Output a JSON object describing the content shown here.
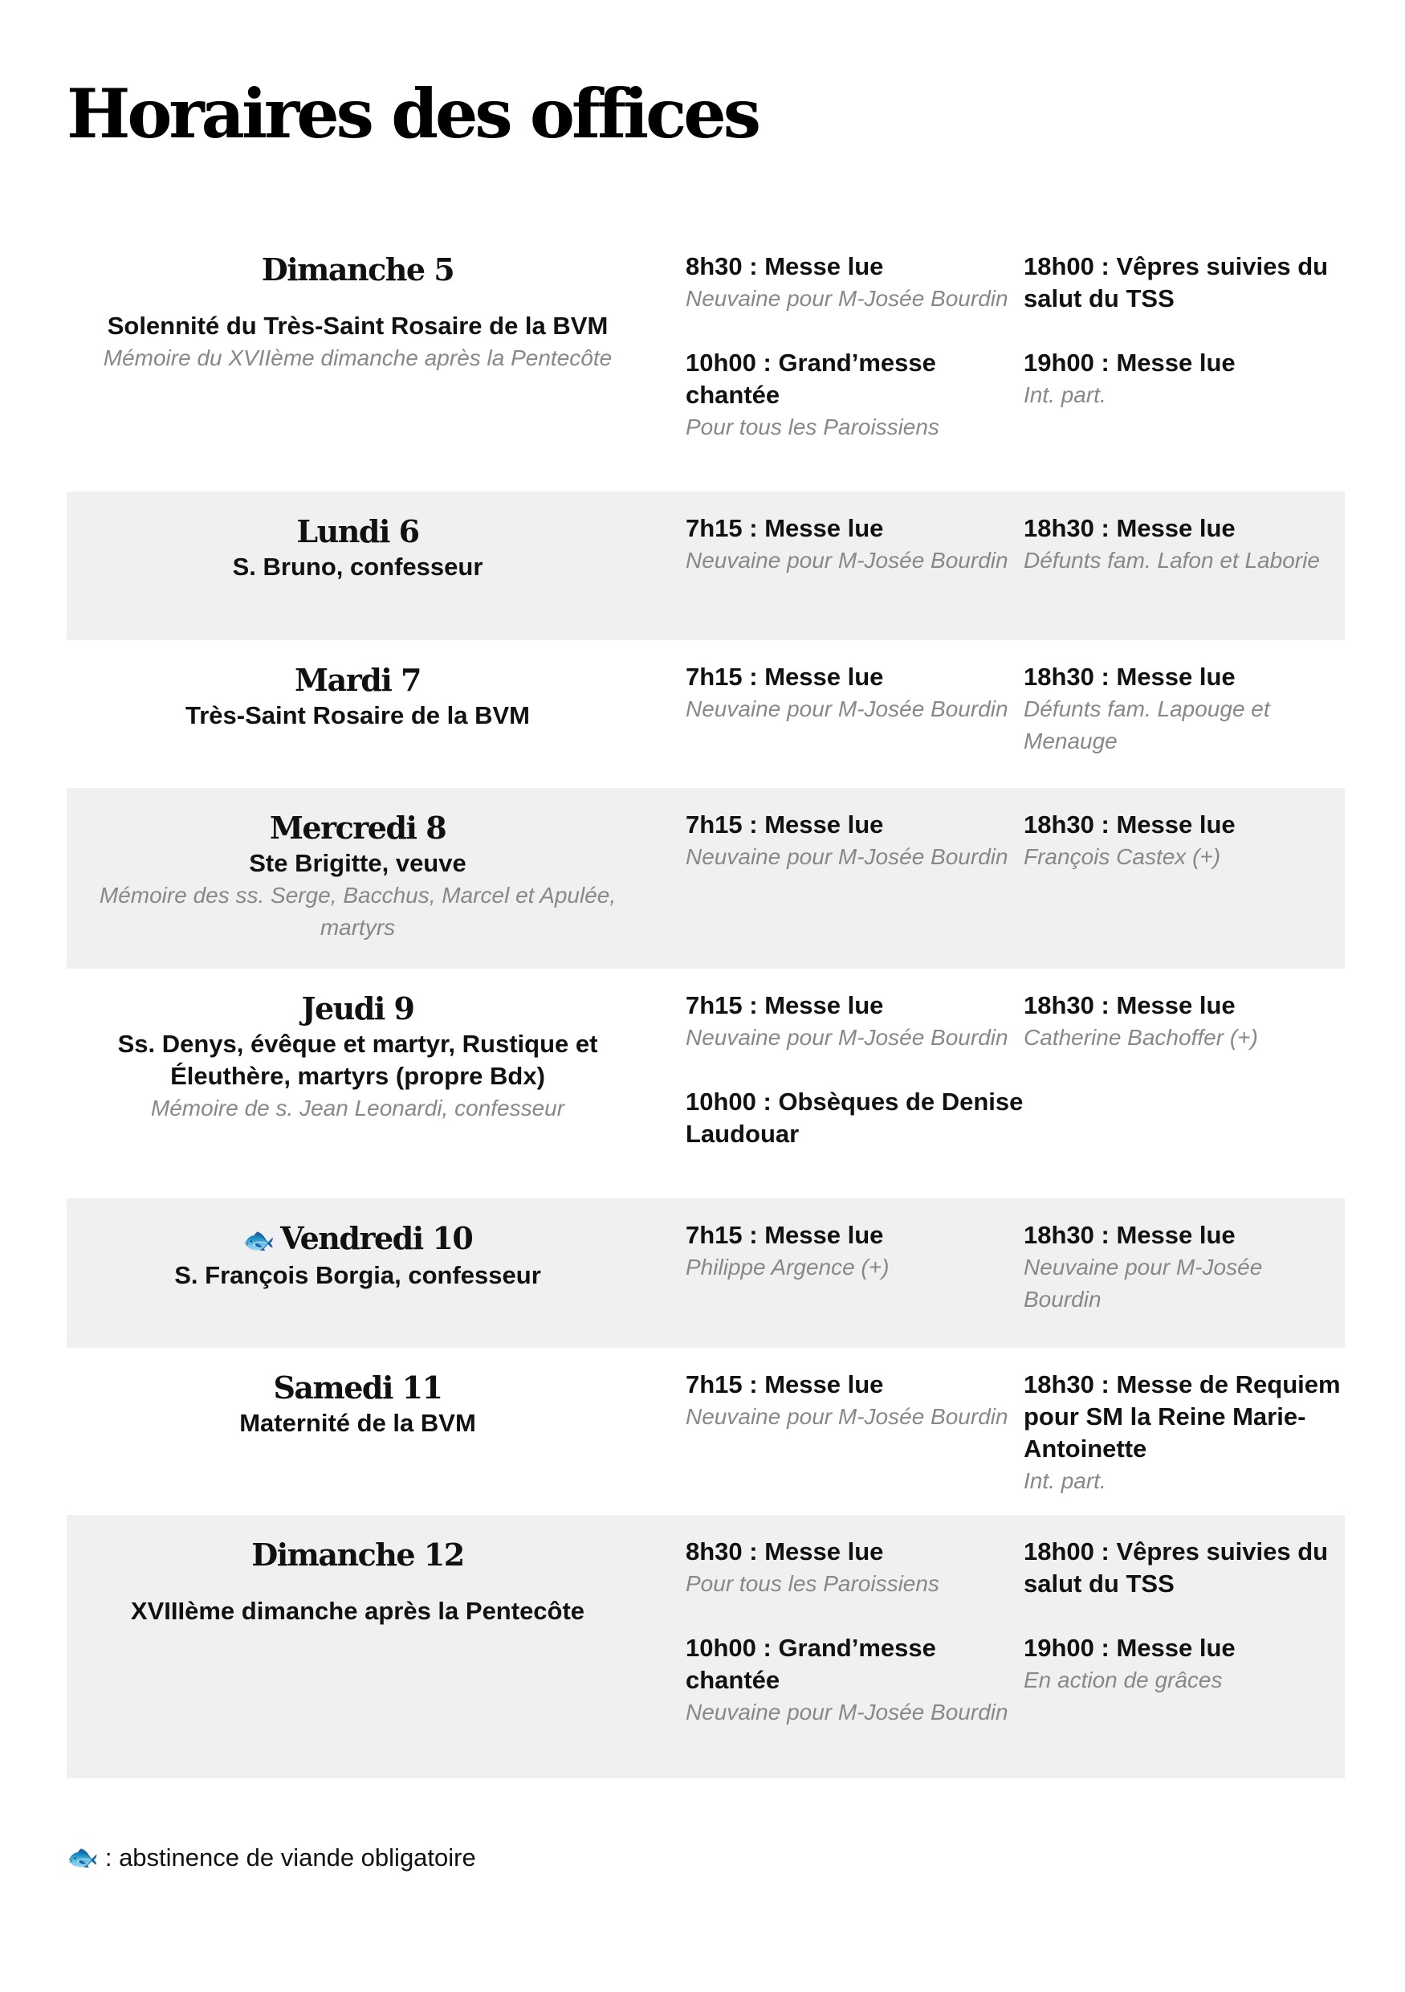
{
  "title": "Horaires des offices",
  "days": [
    {
      "day": "Dimanche 5",
      "fish": false,
      "feast": "Solennité du Très-Saint Rosaire de la BVM",
      "memo": "Mémoire du XVIIème dimanche après la Pentecôte",
      "col1": [
        {
          "title": "8h30 : Messe lue",
          "int": "Neuvaine pour M-Josée Bourdin"
        },
        {
          "title": "10h00 : Grand’messe chantée",
          "int": "Pour tous les Paroissiens"
        }
      ],
      "col2": [
        {
          "title": "18h00 : Vêpres suivies du salut du TSS",
          "int": ""
        },
        {
          "title": "19h00 : Messe lue",
          "int": "Int. part."
        }
      ]
    },
    {
      "day": "Lundi 6",
      "fish": false,
      "feast": "S. Bruno, confesseur",
      "memo": "",
      "col1": [
        {
          "title": "7h15 : Messe lue",
          "int": "Neuvaine pour M-Josée Bourdin"
        }
      ],
      "col2": [
        {
          "title": "18h30 : Messe lue",
          "int": "Défunts fam. Lafon et Laborie"
        }
      ]
    },
    {
      "day": "Mardi 7",
      "fish": false,
      "feast": "Très-Saint Rosaire de la BVM",
      "memo": "",
      "col1": [
        {
          "title": "7h15 : Messe lue",
          "int": "Neuvaine pour M-Josée Bourdin"
        }
      ],
      "col2": [
        {
          "title": "18h30 : Messe lue",
          "int": "Défunts fam. Lapouge et Menauge"
        }
      ]
    },
    {
      "day": "Mercredi 8",
      "fish": false,
      "feast": "Ste Brigitte, veuve",
      "memo": "Mémoire des ss. Serge, Bacchus, Marcel et Apulée, martyrs",
      "col1": [
        {
          "title": "7h15 : Messe lue",
          "int": "Neuvaine pour M-Josée Bourdin"
        }
      ],
      "col2": [
        {
          "title": "18h30 : Messe lue",
          "int": "François Castex (+)"
        }
      ]
    },
    {
      "day": "Jeudi 9",
      "fish": false,
      "feast": "Ss. Denys, évêque et martyr, Rustique et Éleuthère, martyrs (propre Bdx)",
      "memo": "Mémoire de s. Jean Leonardi, confesseur",
      "col1": [
        {
          "title": "7h15 : Messe lue",
          "int": "Neuvaine pour M-Josée Bourdin"
        },
        {
          "title": "10h00 : Obsèques de Denise Laudouar",
          "int": ""
        }
      ],
      "col2": [
        {
          "title": "18h30 : Messe lue",
          "int": "Catherine Bachoffer (+)"
        }
      ]
    },
    {
      "day": "Vendredi 10",
      "fish": true,
      "feast": "S. François Borgia, confesseur",
      "memo": "",
      "col1": [
        {
          "title": "7h15 : Messe lue",
          "int": "Philippe Argence (+)"
        }
      ],
      "col2": [
        {
          "title": "18h30 : Messe lue",
          "int": "Neuvaine pour M-Josée Bourdin"
        }
      ]
    },
    {
      "day": "Samedi 11",
      "fish": false,
      "feast": "Maternité de la BVM",
      "memo": "",
      "col1": [
        {
          "title": "7h15 : Messe lue",
          "int": "Neuvaine pour M-Josée Bourdin"
        }
      ],
      "col2": [
        {
          "title": "18h30 : Messe de Requiem pour SM la Reine Marie-Antoinette",
          "int": "Int. part."
        }
      ]
    },
    {
      "day": "Dimanche 12",
      "fish": false,
      "feast": "XVIIIème dimanche après la Pentecôte",
      "memo": "",
      "col1": [
        {
          "title": "8h30 : Messe lue",
          "int": "Pour tous les Paroissiens"
        },
        {
          "title": "10h00 : Grand’messe chantée",
          "int": "Neuvaine pour M-Josée Bourdin"
        }
      ],
      "col2": [
        {
          "title": "18h00 : Vêpres suivies du salut du TSS",
          "int": ""
        },
        {
          "title": "19h00 : Messe lue",
          "int": "En action de grâces"
        }
      ]
    }
  ],
  "footer": {
    "icon": "fish-icon",
    "text": ": abstinence de viande obligatoire"
  },
  "colors": {
    "shade": "#f0f0f0",
    "muted": "#888888"
  }
}
